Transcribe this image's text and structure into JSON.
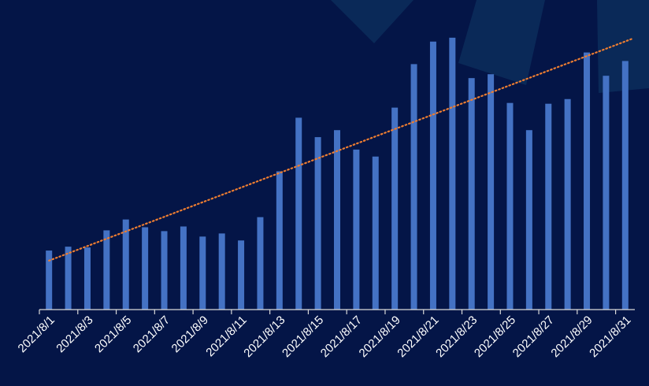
{
  "chart_data": {
    "type": "bar",
    "title": "",
    "xlabel": "",
    "ylabel": "",
    "categories": [
      "2021/8/1",
      "2021/8/2",
      "2021/8/3",
      "2021/8/4",
      "2021/8/5",
      "2021/8/6",
      "2021/8/7",
      "2021/8/8",
      "2021/8/9",
      "2021/8/10",
      "2021/8/11",
      "2021/8/12",
      "2021/8/13",
      "2021/8/14",
      "2021/8/15",
      "2021/8/16",
      "2021/8/17",
      "2021/8/18",
      "2021/8/19",
      "2021/8/20",
      "2021/8/21",
      "2021/8/22",
      "2021/8/23",
      "2021/8/24",
      "2021/8/25",
      "2021/8/26",
      "2021/8/27",
      "2021/8/28",
      "2021/8/29",
      "2021/8/30",
      "2021/8/31"
    ],
    "tick_labels": [
      "2021/8/1",
      "2021/8/3",
      "2021/8/5",
      "2021/8/7",
      "2021/8/9",
      "2021/8/11",
      "2021/8/13",
      "2021/8/15",
      "2021/8/17",
      "2021/8/19",
      "2021/8/21",
      "2021/8/23",
      "2021/8/25",
      "2021/8/27",
      "2021/8/29",
      "2021/8/31"
    ],
    "values": [
      76,
      81,
      80,
      102,
      116,
      106,
      101,
      107,
      94,
      98,
      89,
      119,
      178,
      247,
      222,
      231,
      206,
      197,
      260,
      316,
      345,
      350,
      298,
      303,
      266,
      231,
      265,
      271,
      331,
      301,
      320
    ],
    "ylim": [
      0,
      360
    ],
    "trendline": {
      "type": "linear",
      "style": "dotted",
      "start": 63,
      "end": 345
    },
    "grid": false,
    "legend": "none",
    "colors": {
      "background": "#041547",
      "bar": "#4472c4",
      "trendline": "#ed7d31",
      "axis": "#d9d9d9",
      "shape": "#0c2d5c"
    }
  }
}
